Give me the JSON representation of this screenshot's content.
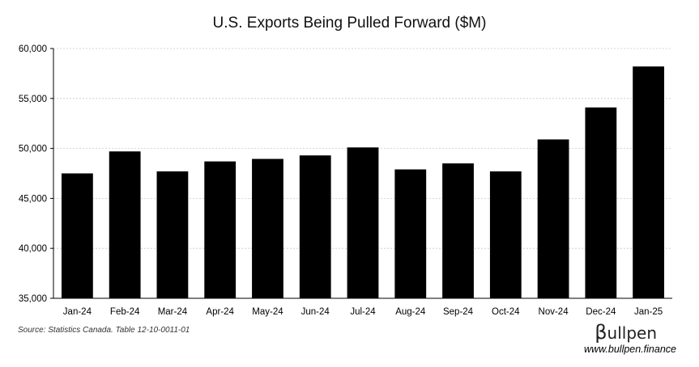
{
  "chart_data": {
    "type": "bar",
    "title": "U.S. Exports Being Pulled Forward ($M)",
    "categories": [
      "Jan-24",
      "Feb-24",
      "Mar-24",
      "Apr-24",
      "May-24",
      "Jun-24",
      "Jul-24",
      "Aug-24",
      "Sep-24",
      "Oct-24",
      "Nov-24",
      "Dec-24",
      "Jan-25"
    ],
    "values": [
      47500,
      49700,
      47700,
      48700,
      48950,
      49300,
      50100,
      47900,
      48500,
      47700,
      50900,
      54100,
      58200
    ],
    "ylim": [
      35000,
      60000
    ],
    "yticks": [
      35000,
      40000,
      45000,
      50000,
      55000,
      60000
    ],
    "ytick_labels": [
      "35,000",
      "40,000",
      "45,000",
      "50,000",
      "55,000",
      "60,000"
    ],
    "xlabel": "",
    "ylabel": "",
    "grid": true,
    "bar_color": "#000000"
  },
  "source": "Source: Statistics Canada. Table 12-10-0011-01",
  "brand": {
    "logo_initial": "β",
    "logo_text": "ullpen",
    "url": "www.bullpen.finance"
  }
}
